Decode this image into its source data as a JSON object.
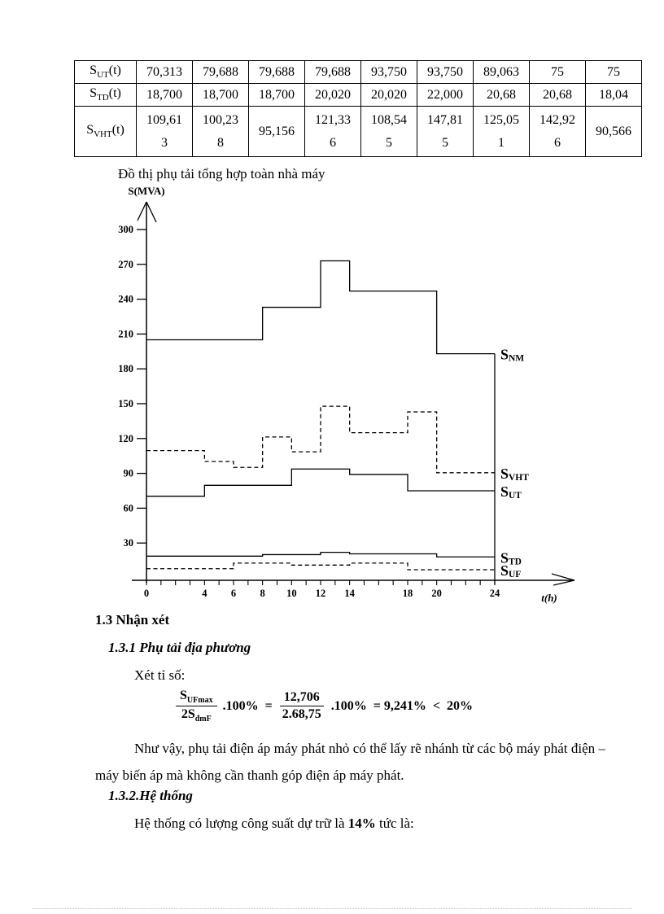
{
  "table": {
    "rows": [
      {
        "base": "S",
        "sub": "UT",
        "suffix": "(t)",
        "values": [
          "70,313",
          "79,688",
          "79,688",
          "79,688",
          "93,750",
          "93,750",
          "89,063",
          "75",
          "75"
        ]
      },
      {
        "base": "S",
        "sub": "TD",
        "suffix": "(t)",
        "values": [
          "18,700",
          "18,700",
          "18,700",
          "20,020",
          "20,020",
          "22,000",
          "20,68",
          "20,68",
          "18,04"
        ]
      },
      {
        "base": "S",
        "sub": "VHT",
        "suffix": "(t)",
        "values": [
          "109,613",
          "100,238",
          "95,156",
          "121,336",
          "108,545",
          "147,815",
          "125,051",
          "142,926",
          "90,566"
        ]
      }
    ]
  },
  "caption": "Đồ thị phụ tải tổng hợp toàn nhà máy",
  "chart_data": {
    "type": "line",
    "subtype": "step",
    "title": "Đồ thị phụ tải tổng hợp toàn nhà máy",
    "xlabel": "t(h)",
    "ylabel": "S(MVA)",
    "xlim": [
      0,
      24
    ],
    "ylim": [
      0,
      320
    ],
    "grid": false,
    "legend_position": "right-of-curve-ends",
    "x_boundaries": [
      0,
      4,
      6,
      8,
      10,
      12,
      14,
      18,
      20,
      24
    ],
    "x_tick_labels": [
      "0",
      "4",
      "6",
      "8",
      "10",
      "12",
      "14",
      "18",
      "20",
      "24"
    ],
    "y_ticks": [
      30,
      60,
      90,
      120,
      150,
      180,
      210,
      240,
      270,
      300
    ],
    "series": [
      {
        "name": "SNM",
        "base": "S",
        "sub": "NM",
        "style": "solid",
        "values": [
          205,
          205,
          205,
          233,
          233,
          273,
          247,
          247,
          193
        ]
      },
      {
        "name": "SVHT",
        "base": "S",
        "sub": "VHT",
        "style": "dashed",
        "values": [
          109.613,
          100.238,
          95.156,
          121.336,
          108.545,
          147.815,
          125.051,
          142.926,
          90.566
        ]
      },
      {
        "name": "SUT",
        "base": "S",
        "sub": "UT",
        "style": "solid",
        "values": [
          70.313,
          79.688,
          79.688,
          79.688,
          93.75,
          93.75,
          89.063,
          75,
          75
        ]
      },
      {
        "name": "STD",
        "base": "S",
        "sub": "TD",
        "style": "solid",
        "values": [
          18.7,
          18.7,
          18.7,
          20.02,
          20.02,
          22.0,
          20.68,
          20.68,
          18.04
        ]
      },
      {
        "name": "SUF",
        "base": "S",
        "sub": "UF",
        "style": "dashed",
        "values": [
          7.9,
          7.9,
          12.7,
          12.7,
          11,
          11,
          12.7,
          7,
          7
        ]
      }
    ]
  },
  "sections": {
    "h13": "1.3 Nhận xét",
    "h131": "1.3.1 Phụ tải địa phương",
    "ratio_intro": "Xét tỉ số:",
    "para1": "Như vậy, phụ tải điện áp máy phát nhỏ có thể lấy rẽ nhánh từ các bộ máy phát điện – máy biến áp mà không cần thanh góp điện áp máy phát.",
    "h132": "1.3.2.Hệ thống",
    "para2_pre": "Hệ thống có lượng công suất dự trữ là ",
    "para2_bold": "14%",
    "para2_post": " tức là:"
  },
  "formula": {
    "num1_base": "S",
    "num1_sub": "UFmax",
    "den1_base": "2S",
    "den1_sub": "đmF",
    "op1": ".100%  =",
    "num2": "12,706",
    "den2": "2.68,75",
    "op2": ".100%  = 9,241%  <  20%"
  }
}
